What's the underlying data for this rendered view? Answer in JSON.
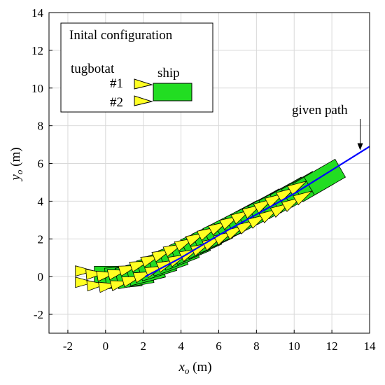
{
  "chart_data": {
    "type": "scatter",
    "xlabel_main": "x",
    "xlabel_sub": "o",
    "xlabel_unit": " (m)",
    "ylabel_main": "y",
    "ylabel_sub": "o",
    "ylabel_unit": " (m)",
    "xlim": [
      -3,
      14
    ],
    "ylim": [
      -3,
      14
    ],
    "xticks": [
      -2,
      0,
      2,
      4,
      6,
      8,
      10,
      12,
      14
    ],
    "yticks": [
      -2,
      0,
      2,
      4,
      6,
      8,
      10,
      12,
      14
    ],
    "grid": true,
    "annotation": {
      "text": "given path",
      "arrow_to": [
        13.5,
        6.7
      ]
    },
    "legend": {
      "title": "Inital configuration",
      "tug_label": "tugbotat",
      "ship_label": "ship",
      "tug1": "#1",
      "tug2": "#2",
      "placement": "top-left"
    },
    "given_path": {
      "x": [
        2.1,
        4,
        6,
        8,
        10,
        12,
        14
      ],
      "y": [
        0.0,
        1.0,
        2.2,
        3.3,
        4.4,
        5.65,
        6.9
      ]
    },
    "ship_poses": [
      {
        "x": -0.6,
        "y": 0.0,
        "theta": 0
      },
      {
        "x": 0.0,
        "y": -0.1,
        "theta": 5
      },
      {
        "x": 0.6,
        "y": -0.1,
        "theta": 10
      },
      {
        "x": 1.2,
        "y": 0.05,
        "theta": 14
      },
      {
        "x": 1.8,
        "y": 0.3,
        "theta": 17
      },
      {
        "x": 2.4,
        "y": 0.55,
        "theta": 19
      },
      {
        "x": 3.0,
        "y": 0.85,
        "theta": 21
      },
      {
        "x": 3.6,
        "y": 1.15,
        "theta": 23
      },
      {
        "x": 4.2,
        "y": 1.45,
        "theta": 24
      },
      {
        "x": 4.8,
        "y": 1.75,
        "theta": 25
      },
      {
        "x": 5.4,
        "y": 2.05,
        "theta": 26
      },
      {
        "x": 6.0,
        "y": 2.35,
        "theta": 27
      },
      {
        "x": 6.6,
        "y": 2.65,
        "theta": 28
      },
      {
        "x": 7.2,
        "y": 2.95,
        "theta": 28
      },
      {
        "x": 7.8,
        "y": 3.25,
        "theta": 29
      },
      {
        "x": 8.4,
        "y": 3.55,
        "theta": 29
      },
      {
        "x": 9.0,
        "y": 3.85,
        "theta": 30
      },
      {
        "x": 9.6,
        "y": 4.15,
        "theta": 30
      },
      {
        "x": 10.2,
        "y": 4.45,
        "theta": 30
      },
      {
        "x": 10.8,
        "y": 4.8,
        "theta": 30
      }
    ],
    "colors": {
      "ship": "#22dd22",
      "tug": "#ffff22",
      "path": "#0000ff",
      "outline": "#000000",
      "grid": "#d9d9d9"
    }
  }
}
